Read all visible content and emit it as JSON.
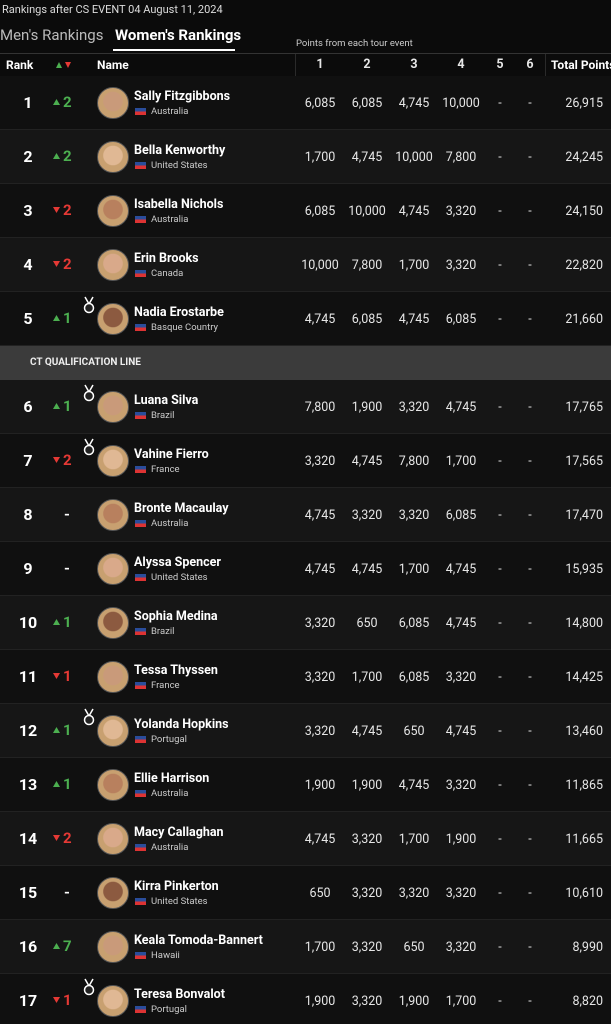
{
  "header": {
    "title": "Rankings after CS EVENT 04 August 11, 2024",
    "tabs": [
      "Men's Rankings",
      "Women's Rankings"
    ],
    "active_tab": 1,
    "points_caption": "Points from each tour event"
  },
  "table": {
    "columns": {
      "rank": "Rank",
      "name": "Name",
      "events": [
        "1",
        "2",
        "3",
        "4",
        "5",
        "6"
      ],
      "total": "Total Points"
    },
    "qualification_label": "CT QUALIFICATION LINE",
    "qualification_after": 5,
    "rows": [
      {
        "rank": "1",
        "direction": "up",
        "change": "2",
        "medal": false,
        "name": "Sally Fitzgibbons",
        "country": "Australia",
        "points": [
          "6,085",
          "6,085",
          "4,745",
          "10,000",
          "-",
          "-"
        ],
        "total": "26,915"
      },
      {
        "rank": "2",
        "direction": "up",
        "change": "2",
        "medal": false,
        "name": "Bella Kenworthy",
        "country": "United States",
        "points": [
          "1,700",
          "4,745",
          "10,000",
          "7,800",
          "-",
          "-"
        ],
        "total": "24,245"
      },
      {
        "rank": "3",
        "direction": "down",
        "change": "2",
        "medal": false,
        "name": "Isabella Nichols",
        "country": "Australia",
        "points": [
          "6,085",
          "10,000",
          "4,745",
          "3,320",
          "-",
          "-"
        ],
        "total": "24,150"
      },
      {
        "rank": "4",
        "direction": "down",
        "change": "2",
        "medal": false,
        "name": "Erin Brooks",
        "country": "Canada",
        "points": [
          "10,000",
          "7,800",
          "1,700",
          "3,320",
          "-",
          "-"
        ],
        "total": "22,820"
      },
      {
        "rank": "5",
        "direction": "up",
        "change": "1",
        "medal": true,
        "name": "Nadia Erostarbe",
        "country": "Basque Country",
        "points": [
          "4,745",
          "6,085",
          "4,745",
          "6,085",
          "-",
          "-"
        ],
        "total": "21,660"
      },
      {
        "rank": "6",
        "direction": "up",
        "change": "1",
        "medal": true,
        "name": "Luana Silva",
        "country": "Brazil",
        "points": [
          "7,800",
          "1,900",
          "3,320",
          "4,745",
          "-",
          "-"
        ],
        "total": "17,765"
      },
      {
        "rank": "7",
        "direction": "down",
        "change": "2",
        "medal": true,
        "name": "Vahine Fierro",
        "country": "France",
        "points": [
          "3,320",
          "4,745",
          "7,800",
          "1,700",
          "-",
          "-"
        ],
        "total": "17,565"
      },
      {
        "rank": "8",
        "direction": "none",
        "change": "-",
        "medal": false,
        "name": "Bronte Macaulay",
        "country": "Australia",
        "points": [
          "4,745",
          "3,320",
          "3,320",
          "6,085",
          "-",
          "-"
        ],
        "total": "17,470"
      },
      {
        "rank": "9",
        "direction": "none",
        "change": "-",
        "medal": false,
        "name": "Alyssa Spencer",
        "country": "United States",
        "points": [
          "4,745",
          "4,745",
          "1,700",
          "4,745",
          "-",
          "-"
        ],
        "total": "15,935"
      },
      {
        "rank": "10",
        "direction": "up",
        "change": "1",
        "medal": false,
        "name": "Sophia Medina",
        "country": "Brazil",
        "points": [
          "3,320",
          "650",
          "6,085",
          "4,745",
          "-",
          "-"
        ],
        "total": "14,800"
      },
      {
        "rank": "11",
        "direction": "down",
        "change": "1",
        "medal": false,
        "name": "Tessa Thyssen",
        "country": "France",
        "points": [
          "3,320",
          "1,700",
          "6,085",
          "3,320",
          "-",
          "-"
        ],
        "total": "14,425"
      },
      {
        "rank": "12",
        "direction": "up",
        "change": "1",
        "medal": true,
        "name": "Yolanda Hopkins",
        "country": "Portugal",
        "points": [
          "3,320",
          "4,745",
          "650",
          "4,745",
          "-",
          "-"
        ],
        "total": "13,460"
      },
      {
        "rank": "13",
        "direction": "up",
        "change": "1",
        "medal": false,
        "name": "Ellie Harrison",
        "country": "Australia",
        "points": [
          "1,900",
          "1,900",
          "4,745",
          "3,320",
          "-",
          "-"
        ],
        "total": "11,865"
      },
      {
        "rank": "14",
        "direction": "down",
        "change": "2",
        "medal": false,
        "name": "Macy Callaghan",
        "country": "Australia",
        "points": [
          "4,745",
          "3,320",
          "1,700",
          "1,900",
          "-",
          "-"
        ],
        "total": "11,665"
      },
      {
        "rank": "15",
        "direction": "none",
        "change": "-",
        "medal": false,
        "name": "Kirra Pinkerton",
        "country": "United States",
        "points": [
          "650",
          "3,320",
          "3,320",
          "3,320",
          "-",
          "-"
        ],
        "total": "10,610"
      },
      {
        "rank": "16",
        "direction": "up",
        "change": "7",
        "medal": false,
        "name": "Keala Tomoda-Bannert",
        "country": "Hawaii",
        "points": [
          "1,700",
          "3,320",
          "650",
          "3,320",
          "-",
          "-"
        ],
        "total": "8,990"
      },
      {
        "rank": "17",
        "direction": "down",
        "change": "1",
        "medal": true,
        "name": "Teresa Bonvalot",
        "country": "Portugal",
        "points": [
          "1,900",
          "3,320",
          "1,900",
          "1,700",
          "-",
          "-"
        ],
        "total": "8,820"
      }
    ]
  }
}
